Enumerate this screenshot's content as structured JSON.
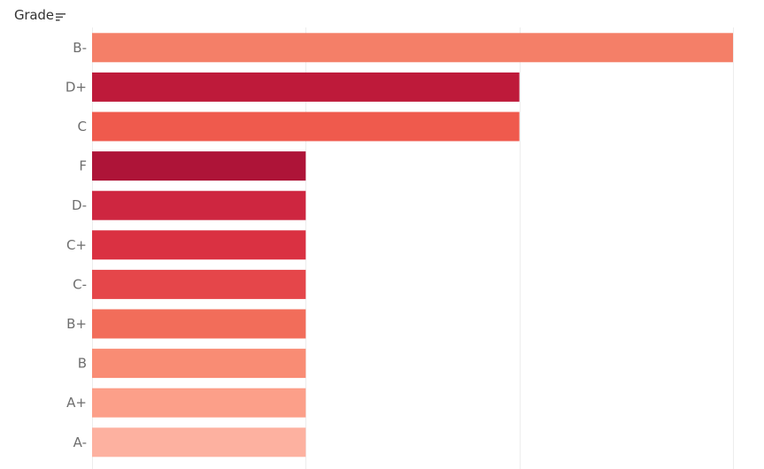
{
  "header": {
    "field_label": "Grade",
    "sort_icon": "sort-descending-icon"
  },
  "chart_data": {
    "type": "bar",
    "orientation": "horizontal",
    "title": "",
    "xlabel": "",
    "ylabel": "Grade",
    "categories": [
      "B-",
      "D+",
      "C",
      "F",
      "D-",
      "C+",
      "C-",
      "B+",
      "B",
      "A+",
      "A-"
    ],
    "values": [
      3,
      2,
      2,
      1,
      1,
      1,
      1,
      1,
      1,
      1,
      1
    ],
    "colors": [
      "#F47F68",
      "#BE1A3A",
      "#EF5A4D",
      "#AE1438",
      "#CE2640",
      "#DA3142",
      "#E5464A",
      "#F26D5A",
      "#F98C74",
      "#FC9F89",
      "#FDB1A0"
    ],
    "xlim": [
      0,
      3
    ],
    "grid": true,
    "legend": "none"
  }
}
